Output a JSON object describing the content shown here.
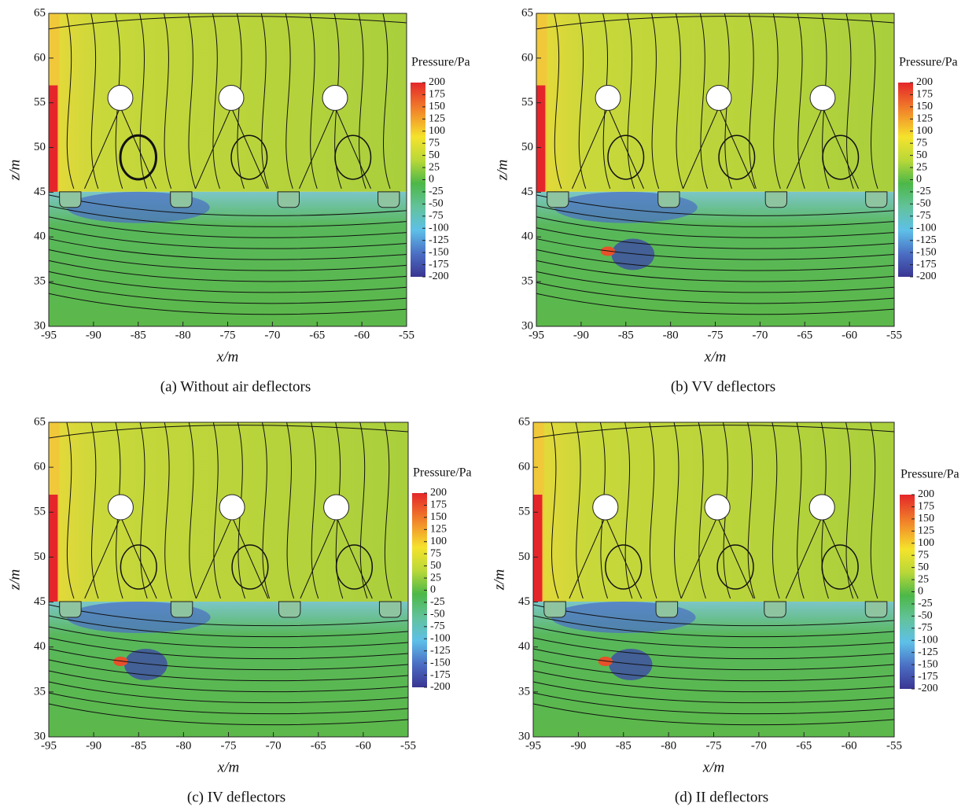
{
  "chart_data": [
    {
      "type": "contour",
      "title": "(a) Without air deflectors",
      "xlabel": "x/m",
      "ylabel": "z/m",
      "xlim": [
        -95,
        -55
      ],
      "ylim": [
        30,
        65
      ],
      "xticks": [
        -95,
        -90,
        -85,
        -80,
        -75,
        -70,
        -65,
        -60,
        -55
      ],
      "yticks": [
        30,
        35,
        40,
        45,
        50,
        55,
        60,
        65
      ],
      "colorbar": {
        "title": "Pressure/Pa",
        "lim": [
          -200,
          200
        ],
        "ticks": [
          200,
          175,
          150,
          125,
          100,
          75,
          50,
          25,
          0,
          -25,
          -50,
          -75,
          -100,
          -125,
          -150,
          -175,
          -200
        ]
      }
    },
    {
      "type": "contour",
      "title": "(b) VV deflectors",
      "xlabel": "x/m",
      "ylabel": "z/m",
      "xlim": [
        -95,
        -55
      ],
      "ylim": [
        30,
        65
      ],
      "xticks": [
        -95,
        -90,
        -85,
        -80,
        -75,
        -70,
        -65,
        -60,
        -55
      ],
      "yticks": [
        30,
        35,
        40,
        45,
        50,
        55,
        60,
        65
      ],
      "colorbar": {
        "title": "Pressure/Pa",
        "lim": [
          -200,
          200
        ],
        "ticks": [
          200,
          175,
          150,
          125,
          100,
          75,
          50,
          25,
          0,
          -25,
          -50,
          -75,
          -100,
          -125,
          -150,
          -175,
          -200
        ]
      }
    },
    {
      "type": "contour",
      "title": "(c) IV deflectors",
      "xlabel": "x/m",
      "ylabel": "z/m",
      "xlim": [
        -95,
        -55
      ],
      "ylim": [
        30,
        65
      ],
      "xticks": [
        -95,
        -90,
        -85,
        -80,
        -75,
        -70,
        -65,
        -60,
        -55
      ],
      "yticks": [
        30,
        35,
        40,
        45,
        50,
        55,
        60,
        65
      ],
      "colorbar": {
        "title": "Pressure/Pa",
        "lim": [
          -200,
          200
        ],
        "ticks": [
          200,
          175,
          150,
          125,
          100,
          75,
          50,
          25,
          0,
          -25,
          -50,
          -75,
          -100,
          -125,
          -150,
          -175,
          -200
        ]
      }
    },
    {
      "type": "contour",
      "title": "(d) II deflectors",
      "xlabel": "x/m",
      "ylabel": "z/m",
      "xlim": [
        -95,
        -55
      ],
      "ylim": [
        30,
        65
      ],
      "xticks": [
        -95,
        -90,
        -85,
        -80,
        -75,
        -70,
        -65,
        -60,
        -55
      ],
      "yticks": [
        30,
        35,
        40,
        45,
        50,
        55,
        60,
        65
      ],
      "colorbar": {
        "title": "Pressure/Pa",
        "lim": [
          -200,
          200
        ],
        "ticks": [
          200,
          175,
          150,
          125,
          100,
          75,
          50,
          25,
          0,
          -25,
          -50,
          -75,
          -100,
          -125,
          -150,
          -175,
          -200
        ]
      }
    }
  ]
}
